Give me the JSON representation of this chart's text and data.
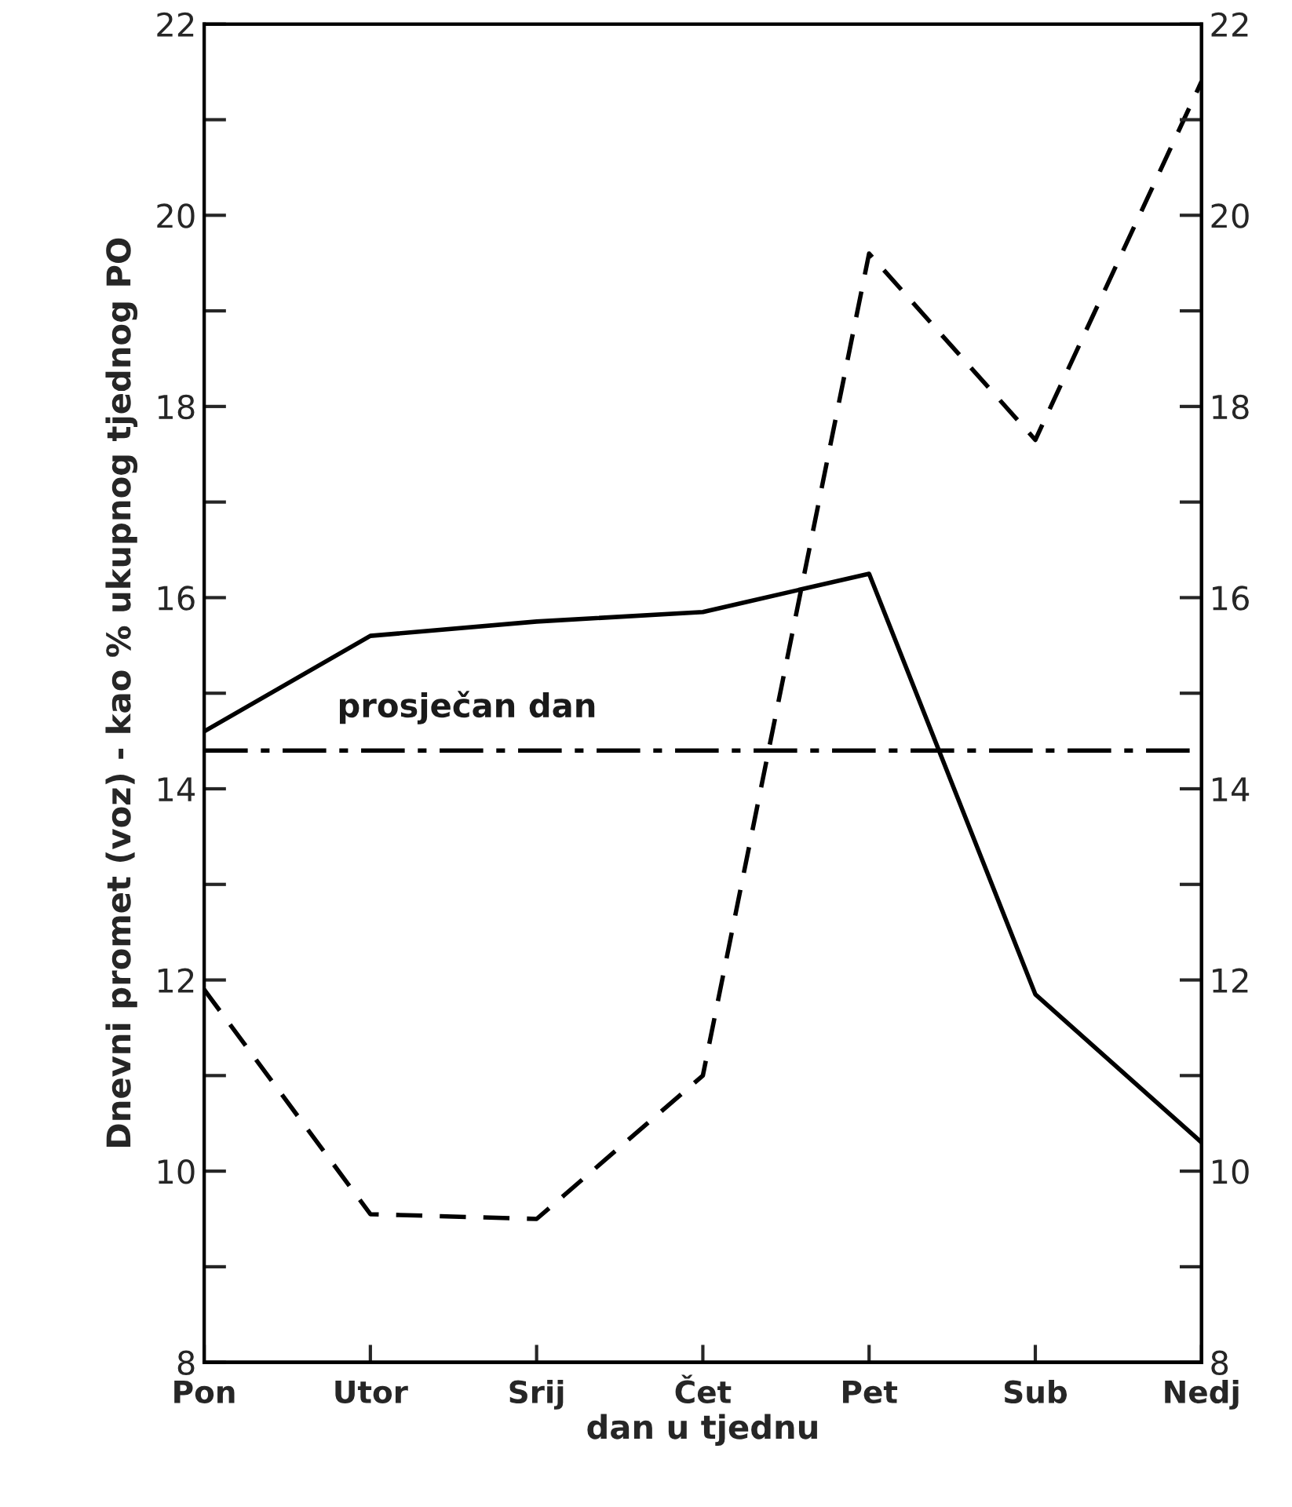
{
  "chart_data": {
    "type": "line",
    "xlabel": "dan u tjednu",
    "ylabel": "Dnevni promet (voz) - kao % ukupnog tjednog PO",
    "categories": [
      "Pon",
      "Utor",
      "Srij",
      "Čet",
      "Pet",
      "Sub",
      "Nedj"
    ],
    "series": [
      {
        "color": "#000000",
        "line_style": "solid",
        "values": [
          14.6,
          15.6,
          15.75,
          15.85,
          16.25,
          11.85,
          10.3
        ]
      },
      {
        "color": "#000000",
        "line_style": "dashed",
        "values": [
          11.9,
          9.55,
          9.5,
          11.0,
          19.6,
          17.65,
          21.4
        ]
      }
    ],
    "ref_lines": [
      {
        "axis": "y",
        "value": 14.4,
        "label": "prosječan dan",
        "color": "#000000",
        "line_style": "dashdot"
      }
    ],
    "ylim": [
      8,
      22
    ],
    "yticks": [
      8,
      {
        "value": 9,
        "label": null
      },
      10,
      {
        "value": 11,
        "label": null
      },
      12,
      {
        "value": 13,
        "label": null
      },
      14,
      {
        "value": 15,
        "label": null
      },
      16,
      {
        "value": 17,
        "label": null
      },
      18,
      {
        "value": 19,
        "label": null
      },
      20,
      {
        "value": 21,
        "label": null
      },
      22
    ],
    "y2lim": [
      8,
      22
    ],
    "y2ticks": [
      8,
      {
        "value": 9,
        "label": null
      },
      10,
      {
        "value": 11,
        "label": null
      },
      12,
      {
        "value": 13,
        "label": null
      },
      14,
      {
        "value": 15,
        "label": null
      },
      16,
      {
        "value": 17,
        "label": null
      },
      18,
      {
        "value": 19,
        "label": null
      },
      20,
      {
        "value": 21,
        "label": null
      },
      22
    ],
    "grid": false,
    "legend": false,
    "marker": "none"
  }
}
